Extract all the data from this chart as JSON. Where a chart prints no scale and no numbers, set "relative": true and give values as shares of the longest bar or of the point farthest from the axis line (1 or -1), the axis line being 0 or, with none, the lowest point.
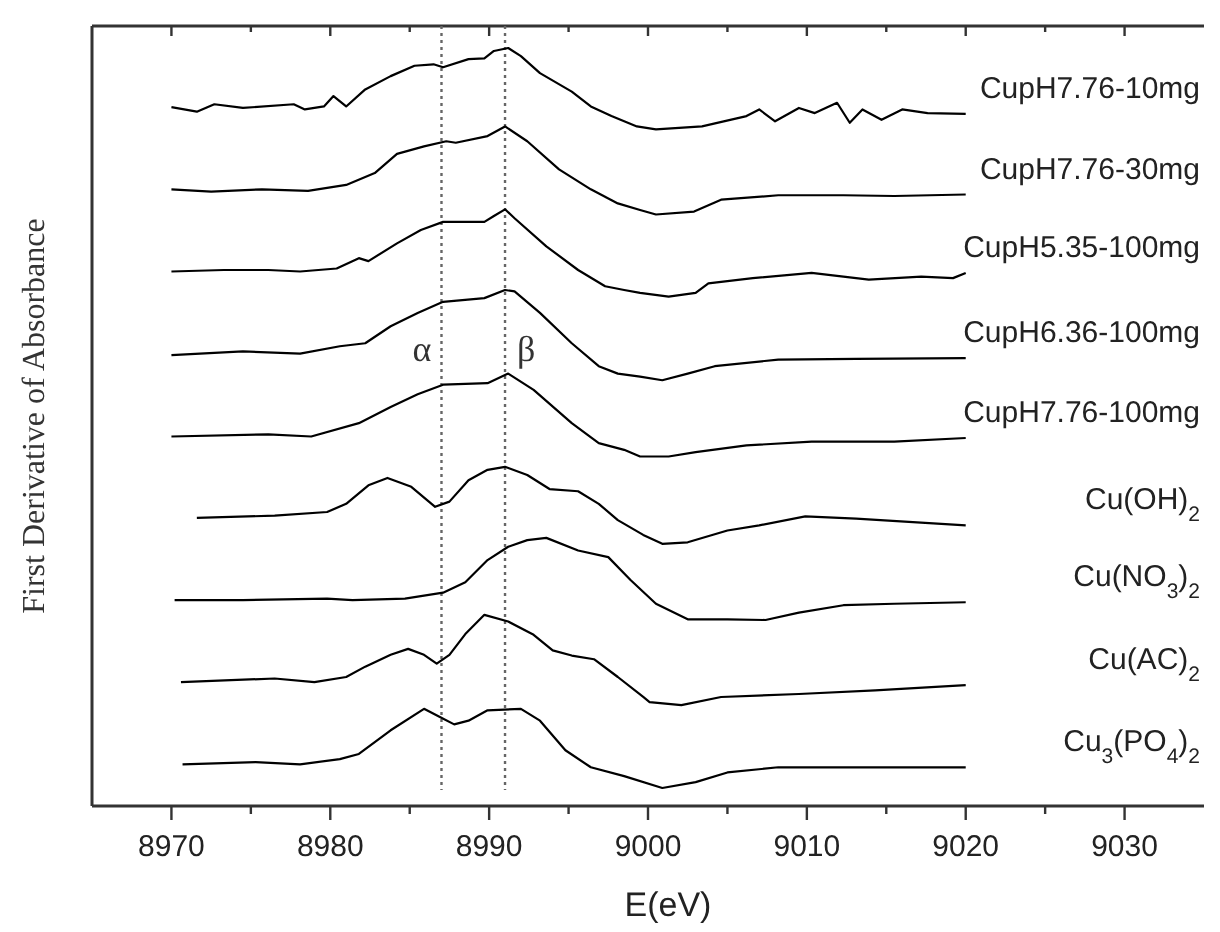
{
  "chart_data": {
    "type": "line",
    "relative": true,
    "xlabel": "E(eV)",
    "ylabel": "First Derivative of Absorbance",
    "xlim": [
      8965,
      9035
    ],
    "xticks": [
      8970,
      {
        "value": 8975,
        "label": null
      },
      8980,
      {
        "value": 8985,
        "label": null
      },
      8990,
      {
        "value": 8995,
        "label": null
      },
      9000,
      {
        "value": 9005,
        "label": null
      },
      9010,
      {
        "value": 9015,
        "label": null
      },
      9020,
      {
        "value": 9025,
        "label": null
      },
      9030
    ],
    "legend": false,
    "marker": "none",
    "line_style": "solid",
    "ref_lines": [
      {
        "axis": "x",
        "value": 8987,
        "line_style": "dotted",
        "color": "#666666",
        "label": "α"
      },
      {
        "axis": "x",
        "value": 8991,
        "line_style": "dotted",
        "color": "#666666",
        "label": "β"
      }
    ],
    "series": [
      {
        "name": "CupH7.76-10mg",
        "color": "#000000",
        "x": [
          8970,
          8971.6,
          8972.7,
          8974.5,
          8977.7,
          8978.4,
          8979.6,
          8980.2,
          8981,
          8982.2,
          8983.8,
          8985.3,
          8986.5,
          8987.1,
          8988.7,
          8989.7,
          8990.3,
          8991.2,
          8992,
          8993.2,
          8995.2,
          8996.4,
          8997.7,
          8999.3,
          9000.5,
          9003.4,
          9006.2,
          9007,
          9008,
          9009.5,
          9010.5,
          9011.9,
          9012.7,
          9013.5,
          9014.7,
          9016,
          9017.6,
          9020
        ],
        "values": [
          0.92,
          0.914,
          0.924,
          0.919,
          0.924,
          0.917,
          0.921,
          0.935,
          0.921,
          0.944,
          0.962,
          0.976,
          0.978,
          0.974,
          0.985,
          0.986,
          0.996,
          1,
          0.989,
          0.966,
          0.941,
          0.921,
          0.908,
          0.894,
          0.89,
          0.894,
          0.908,
          0.917,
          0.901,
          0.919,
          0.912,
          0.926,
          0.899,
          0.917,
          0.903,
          0.917,
          0.912,
          0.911
        ]
      },
      {
        "name": "CupH7.76-30mg",
        "color": "#000000",
        "x": [
          8970,
          8972.5,
          8975.7,
          8978.6,
          8981,
          8982.8,
          8984.2,
          8985.9,
          8987.3,
          8987.9,
          8989.9,
          8991,
          8992.4,
          8994.4,
          8996.4,
          8998.1,
          8999.5,
          9000.5,
          9002.9,
          9004.6,
          9008.2,
          9012.3,
          9015.5,
          9020
        ],
        "values": [
          0.809,
          0.806,
          0.809,
          0.807,
          0.815,
          0.831,
          0.857,
          0.867,
          0.874,
          0.872,
          0.881,
          0.894,
          0.874,
          0.836,
          0.809,
          0.79,
          0.781,
          0.775,
          0.779,
          0.795,
          0.801,
          0.801,
          0.8,
          0.802
        ]
      },
      {
        "name": "CupH5.35-100mg",
        "color": "#000000",
        "x": [
          8970,
          8973.3,
          8976.1,
          8978.1,
          8980.4,
          8981.8,
          8982.4,
          8984.2,
          8985.7,
          8987.1,
          8989.7,
          8990.3,
          8991,
          8991.6,
          8993.6,
          8995.6,
          8997.3,
          8998.5,
          8999.5,
          9001.3,
          9003,
          9003.8,
          9006.6,
          9010.3,
          9013.9,
          9017.2,
          9019.2,
          9020
        ],
        "values": [
          0.698,
          0.7,
          0.7,
          0.698,
          0.702,
          0.716,
          0.712,
          0.736,
          0.754,
          0.765,
          0.765,
          0.773,
          0.782,
          0.77,
          0.732,
          0.7,
          0.678,
          0.673,
          0.669,
          0.664,
          0.669,
          0.682,
          0.689,
          0.696,
          0.687,
          0.691,
          0.689,
          0.696
        ]
      },
      {
        "name": "CupH6.36-100mg",
        "color": "#000000",
        "x": [
          8970,
          8974.5,
          8978.1,
          8980.6,
          8982.2,
          8983.8,
          8985.5,
          8987.1,
          8989.7,
          8991,
          8991.6,
          8993.2,
          8995.2,
          8996.9,
          8998.1,
          8999.5,
          9000.9,
          9002.5,
          9004.2,
          9008.2,
          9013.1,
          9020
        ],
        "values": [
          0.585,
          0.59,
          0.587,
          0.597,
          0.601,
          0.624,
          0.642,
          0.657,
          0.662,
          0.673,
          0.671,
          0.642,
          0.601,
          0.57,
          0.56,
          0.556,
          0.551,
          0.56,
          0.57,
          0.579,
          0.58,
          0.581
        ]
      },
      {
        "name": "CupH7.76-100mg",
        "color": "#000000",
        "x": [
          8970,
          8976.1,
          8978.8,
          8981.8,
          8983.8,
          8985.5,
          8987.1,
          8989.9,
          8991.2,
          8992.8,
          8995.2,
          8996.9,
          8998.5,
          8999.5,
          9001.3,
          9003,
          9006.2,
          9010.3,
          9015.5,
          9020
        ],
        "values": [
          0.475,
          0.478,
          0.475,
          0.493,
          0.515,
          0.532,
          0.545,
          0.547,
          0.56,
          0.538,
          0.493,
          0.466,
          0.457,
          0.448,
          0.448,
          0.454,
          0.463,
          0.468,
          0.468,
          0.473
        ]
      },
      {
        "name": "Cu(OH)$_{2}$",
        "color": "#000000",
        "x": [
          8971.6,
          8976.5,
          8979.8,
          8981,
          8982.4,
          8983.6,
          8985.1,
          8986.6,
          8987.5,
          8988.7,
          8989.9,
          8991,
          8992.4,
          8993.8,
          8995.6,
          8996.9,
          8998.1,
          8999.7,
          9000.9,
          9002.5,
          9005,
          9007,
          9009.9,
          9013.1,
          9020
        ],
        "values": [
          0.365,
          0.368,
          0.373,
          0.384,
          0.409,
          0.419,
          0.407,
          0.38,
          0.387,
          0.416,
          0.43,
          0.434,
          0.423,
          0.404,
          0.401,
          0.384,
          0.362,
          0.342,
          0.33,
          0.332,
          0.348,
          0.355,
          0.367,
          0.364,
          0.355
        ]
      },
      {
        "name": "Cu(NO$_{3}$)$_{2}$",
        "color": "#000000",
        "x": [
          8970.2,
          8974.5,
          8979.8,
          8981.4,
          8984.7,
          8987.1,
          8988.5,
          8989.9,
          8991.2,
          8992.4,
          8993.6,
          8995.6,
          8997.5,
          8998.9,
          9000.5,
          9002.5,
          9005,
          9007.4,
          9009.5,
          9012.3,
          9015.5,
          9020
        ],
        "values": [
          0.254,
          0.254,
          0.256,
          0.254,
          0.256,
          0.264,
          0.278,
          0.308,
          0.326,
          0.335,
          0.338,
          0.321,
          0.312,
          0.281,
          0.249,
          0.228,
          0.228,
          0.227,
          0.237,
          0.247,
          0.249,
          0.251
        ]
      },
      {
        "name": "Cu(AC)$_{2}$",
        "color": "#000000",
        "x": [
          8970.6,
          8976.5,
          8979,
          8981,
          8982.2,
          8983.8,
          8984.9,
          8985.9,
          8986.7,
          8987.5,
          8988.5,
          8989.7,
          8991.2,
          8992.8,
          8994,
          8995.2,
          8996.6,
          8998.1,
          8999.7,
          9000.1,
          9002.1,
          9004.6,
          9009.5,
          9014.3,
          9020
        ],
        "values": [
          0.143,
          0.148,
          0.143,
          0.15,
          0.164,
          0.18,
          0.188,
          0.18,
          0.168,
          0.18,
          0.208,
          0.234,
          0.225,
          0.207,
          0.186,
          0.179,
          0.174,
          0.15,
          0.123,
          0.116,
          0.112,
          0.123,
          0.127,
          0.132,
          0.139
        ]
      },
      {
        "name": "Cu$_{3}$(PO$_{4}$)$_{2}$",
        "color": "#000000",
        "x": [
          8970.7,
          8975.3,
          8978.1,
          8980.6,
          8981.8,
          8983.8,
          8985.9,
          8986.9,
          8987.8,
          8988.7,
          8989.9,
          8992,
          8993.2,
          8994.8,
          8996.4,
          8998.5,
          9000.9,
          9003,
          9005,
          9008.2,
          9014.3,
          9020
        ],
        "values": [
          0.032,
          0.035,
          0.032,
          0.039,
          0.046,
          0.078,
          0.107,
          0.096,
          0.086,
          0.091,
          0.105,
          0.107,
          0.091,
          0.051,
          0.028,
          0.016,
          0,
          0.008,
          0.021,
          0.028,
          0.028,
          0.028
        ]
      }
    ]
  }
}
